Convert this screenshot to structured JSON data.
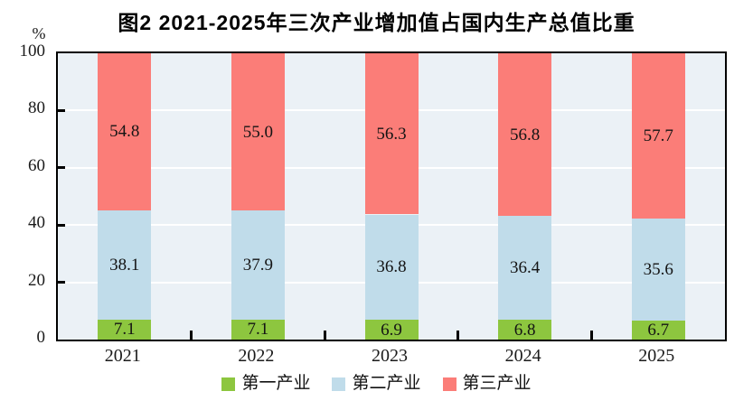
{
  "title": "图2  2021-2025年三次产业增加值占国内生产总值比重",
  "chart_data": {
    "type": "bar",
    "stacked": true,
    "percent_stacked": true,
    "title": "图2  2021-2025年三次产业增加值占国内生产总值比重",
    "unit_label": "%",
    "categories": [
      "2021",
      "2022",
      "2023",
      "2024",
      "2025"
    ],
    "series": [
      {
        "name": "第一产业",
        "color": "#8dc63f",
        "values": [
          7.1,
          7.1,
          6.9,
          6.8,
          6.7
        ],
        "labels": [
          "7.1",
          "7.1",
          "6.9",
          "6.8",
          "6.7"
        ]
      },
      {
        "name": "第二产业",
        "color": "#c0dcea",
        "values": [
          38.1,
          37.9,
          36.8,
          36.4,
          35.6
        ],
        "labels": [
          "38.1",
          "37.9",
          "36.8",
          "36.4",
          "35.6"
        ]
      },
      {
        "name": "第三产业",
        "color": "#fb7d78",
        "values": [
          54.8,
          55.0,
          56.3,
          56.8,
          57.7
        ],
        "labels": [
          "54.8",
          "55.0",
          "56.3",
          "56.8",
          "57.7"
        ]
      }
    ],
    "ylim": [
      0,
      100
    ],
    "yticks": [
      0,
      20,
      40,
      60,
      80,
      100
    ],
    "grid": true,
    "grid_color": "#ffffff",
    "plot_background": "#ebf1f6",
    "axis_color": "#000000",
    "legend_position": "bottom"
  }
}
